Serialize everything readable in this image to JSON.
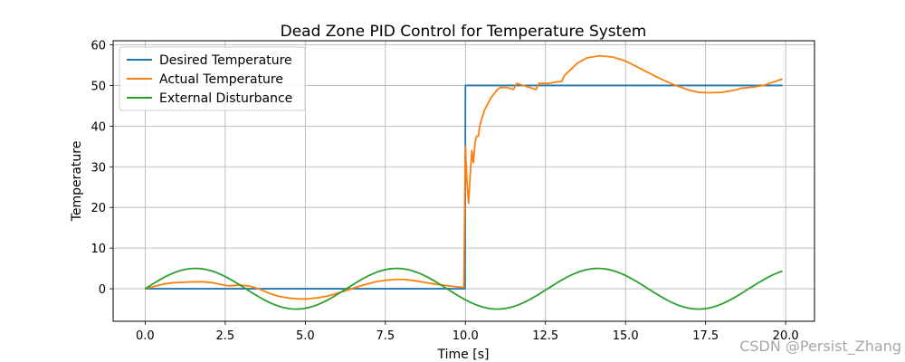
{
  "watermark": "CSDN @Persist_Zhang",
  "chart_data": {
    "type": "line",
    "title": "Dead Zone PID Control for Temperature System",
    "xlabel": "Time [s]",
    "ylabel": "Temperature",
    "xlim": [
      -1,
      20.9
    ],
    "ylim": [
      -8,
      61
    ],
    "xticks": [
      0,
      2.5,
      5,
      7.5,
      10,
      12.5,
      15,
      17.5,
      20
    ],
    "xtick_labels": [
      "0.0",
      "2.5",
      "5.0",
      "7.5",
      "10.0",
      "12.5",
      "15.0",
      "17.5",
      "20.0"
    ],
    "yticks": [
      0,
      10,
      20,
      30,
      40,
      50,
      60
    ],
    "ytick_labels": [
      "0",
      "10",
      "20",
      "30",
      "40",
      "50",
      "60"
    ],
    "grid": true,
    "legend_position": "top-left",
    "series": [
      {
        "name": "Desired Temperature",
        "color": "#1f77b4",
        "x": [
          0,
          9.99,
          10.0,
          19.9
        ],
        "y": [
          0,
          0,
          50,
          50
        ]
      },
      {
        "name": "Actual Temperature",
        "color": "#ff7f0e",
        "x": [
          0,
          0.3,
          0.6,
          0.9,
          1.2,
          1.5,
          1.8,
          2.1,
          2.4,
          2.6,
          2.8,
          3.0,
          3.3,
          3.6,
          3.9,
          4.2,
          4.5,
          4.8,
          5.1,
          5.4,
          5.7,
          6.0,
          6.3,
          6.6,
          6.9,
          7.2,
          7.5,
          7.8,
          8.1,
          8.4,
          8.7,
          9.0,
          9.3,
          9.6,
          9.95,
          10.0,
          10.05,
          10.1,
          10.15,
          10.2,
          10.25,
          10.3,
          10.35,
          10.4,
          10.45,
          10.5,
          10.6,
          10.7,
          10.8,
          10.9,
          11.0,
          11.1,
          11.3,
          11.5,
          11.6,
          11.8,
          12.0,
          12.2,
          12.3,
          12.4,
          12.6,
          12.8,
          13.0,
          13.1,
          13.3,
          13.5,
          13.8,
          14.2,
          14.6,
          15.0,
          15.5,
          16.0,
          16.5,
          17.0,
          17.3,
          17.6,
          18.0,
          18.3,
          18.5,
          18.6,
          19.0,
          19.3,
          19.6,
          19.9
        ],
        "y": [
          0,
          0.6,
          1.2,
          1.5,
          1.6,
          1.7,
          1.7,
          1.5,
          1.0,
          0.7,
          0.8,
          0.9,
          0.6,
          -0.2,
          -1.2,
          -1.9,
          -2.3,
          -2.5,
          -2.5,
          -2.2,
          -1.8,
          -1.1,
          -0.4,
          0.4,
          1.1,
          1.7,
          2.1,
          2.3,
          2.3,
          2.0,
          1.6,
          1.2,
          0.9,
          0.6,
          0.3,
          35.0,
          26.0,
          21.0,
          28.0,
          34.0,
          31.0,
          36.0,
          37.5,
          37.5,
          40.0,
          41.5,
          44.0,
          45.5,
          47.0,
          48.0,
          49.0,
          49.5,
          49.5,
          49.0,
          50.5,
          50.0,
          49.5,
          49.0,
          50.5,
          50.5,
          50.5,
          50.8,
          51.0,
          52.5,
          54.0,
          55.5,
          56.8,
          57.3,
          57.0,
          56.0,
          54.0,
          52.0,
          50.2,
          48.8,
          48.3,
          48.2,
          48.3,
          48.7,
          49.0,
          49.3,
          49.6,
          50.0,
          50.8,
          51.6
        ]
      },
      {
        "name": "External Disturbance",
        "color": "#2ca02c",
        "function": "5*sin(t)",
        "x_range": [
          0,
          19.9
        ]
      }
    ]
  }
}
